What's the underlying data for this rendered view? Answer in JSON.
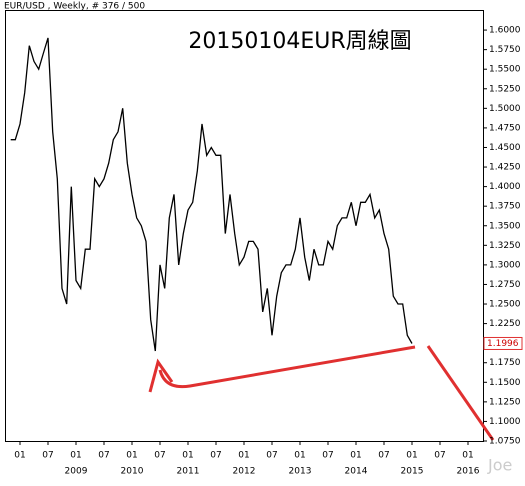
{
  "chart_data": {
    "type": "line",
    "header": "EUR/USD , Weekly, # 376 / 500",
    "title": "20150104EUR周線圖",
    "watermark": "Joe",
    "current_label": "1.1996",
    "x": [
      "2007-11",
      "2007-12",
      "2008-01",
      "2008-02",
      "2008-03",
      "2008-04",
      "2008-05",
      "2008-06",
      "2008-07",
      "2008-08",
      "2008-09",
      "2008-10",
      "2008-11",
      "2008-12",
      "2009-01",
      "2009-02",
      "2009-03",
      "2009-04",
      "2009-05",
      "2009-06",
      "2009-07",
      "2009-08",
      "2009-09",
      "2009-10",
      "2009-11",
      "2009-12",
      "2010-01",
      "2010-02",
      "2010-03",
      "2010-04",
      "2010-05",
      "2010-06",
      "2010-07",
      "2010-08",
      "2010-09",
      "2010-10",
      "2010-11",
      "2010-12",
      "2011-01",
      "2011-02",
      "2011-03",
      "2011-04",
      "2011-05",
      "2011-06",
      "2011-07",
      "2011-08",
      "2011-09",
      "2011-10",
      "2011-11",
      "2011-12",
      "2012-01",
      "2012-02",
      "2012-03",
      "2012-04",
      "2012-05",
      "2012-06",
      "2012-07",
      "2012-08",
      "2012-09",
      "2012-10",
      "2012-11",
      "2012-12",
      "2013-01",
      "2013-02",
      "2013-03",
      "2013-04",
      "2013-05",
      "2013-06",
      "2013-07",
      "2013-08",
      "2013-09",
      "2013-10",
      "2013-11",
      "2013-12",
      "2014-01",
      "2014-02",
      "2014-03",
      "2014-04",
      "2014-05",
      "2014-06",
      "2014-07",
      "2014-08",
      "2014-09",
      "2014-10",
      "2014-11",
      "2014-12",
      "2015-01"
    ],
    "series": [
      {
        "name": "EUR/USD",
        "color": "#000000",
        "values": [
          1.46,
          1.46,
          1.48,
          1.52,
          1.58,
          1.56,
          1.55,
          1.57,
          1.59,
          1.47,
          1.41,
          1.27,
          1.25,
          1.4,
          1.28,
          1.27,
          1.32,
          1.32,
          1.41,
          1.4,
          1.41,
          1.43,
          1.46,
          1.47,
          1.5,
          1.43,
          1.39,
          1.36,
          1.35,
          1.33,
          1.23,
          1.19,
          1.3,
          1.27,
          1.36,
          1.39,
          1.3,
          1.34,
          1.37,
          1.38,
          1.42,
          1.48,
          1.44,
          1.45,
          1.44,
          1.44,
          1.34,
          1.39,
          1.34,
          1.3,
          1.31,
          1.33,
          1.33,
          1.32,
          1.24,
          1.27,
          1.21,
          1.26,
          1.29,
          1.3,
          1.3,
          1.32,
          1.36,
          1.31,
          1.28,
          1.32,
          1.3,
          1.3,
          1.33,
          1.32,
          1.35,
          1.36,
          1.36,
          1.38,
          1.35,
          1.38,
          1.38,
          1.39,
          1.36,
          1.37,
          1.34,
          1.32,
          1.26,
          1.25,
          1.25,
          1.21,
          1.1996
        ]
      }
    ],
    "xlim": [
      "2007-10",
      "2016-04"
    ],
    "xticks": [
      {
        "value": "2008-01",
        "label": "01"
      },
      {
        "value": "2008-07",
        "label": "07"
      },
      {
        "value": "2009-01",
        "label": "01"
      },
      {
        "value": "2009-07",
        "label": "07"
      },
      {
        "value": "2010-01",
        "label": "01"
      },
      {
        "value": "2010-07",
        "label": "07"
      },
      {
        "value": "2011-01",
        "label": "01"
      },
      {
        "value": "2011-07",
        "label": "07"
      },
      {
        "value": "2012-01",
        "label": "01"
      },
      {
        "value": "2012-07",
        "label": "07"
      },
      {
        "value": "2013-01",
        "label": "01"
      },
      {
        "value": "2013-07",
        "label": "07"
      },
      {
        "value": "2014-01",
        "label": "01"
      },
      {
        "value": "2014-07",
        "label": "07"
      },
      {
        "value": "2015-01",
        "label": "01"
      },
      {
        "value": "2015-07",
        "label": "07"
      },
      {
        "value": "2016-01",
        "label": "01"
      }
    ],
    "year_labels": [
      {
        "value": "2009-01",
        "label": "2009"
      },
      {
        "value": "2010-01",
        "label": "2010"
      },
      {
        "value": "2011-01",
        "label": "2011"
      },
      {
        "value": "2012-01",
        "label": "2012"
      },
      {
        "value": "2013-01",
        "label": "2013"
      },
      {
        "value": "2014-01",
        "label": "2014"
      },
      {
        "value": "2015-01",
        "label": "2015"
      },
      {
        "value": "2016-01",
        "label": "2016"
      }
    ],
    "ylim": [
      1.075,
      1.625
    ],
    "yticks": [
      {
        "value": 1.075,
        "label": "1.0750"
      },
      {
        "value": 1.1,
        "label": "1.1000"
      },
      {
        "value": 1.125,
        "label": "1.1250"
      },
      {
        "value": 1.15,
        "label": "1.1500"
      },
      {
        "value": 1.175,
        "label": "1.1750"
      },
      {
        "value": 1.2,
        "label": "1.2000"
      },
      {
        "value": 1.225,
        "label": "1.2250"
      },
      {
        "value": 1.25,
        "label": "1.2500"
      },
      {
        "value": 1.275,
        "label": "1.2750"
      },
      {
        "value": 1.3,
        "label": "1.3000"
      },
      {
        "value": 1.325,
        "label": "1.3250"
      },
      {
        "value": 1.35,
        "label": "1.3500"
      },
      {
        "value": 1.375,
        "label": "1.3750"
      },
      {
        "value": 1.4,
        "label": "1.4000"
      },
      {
        "value": 1.425,
        "label": "1.4250"
      },
      {
        "value": 1.45,
        "label": "1.4500"
      },
      {
        "value": 1.475,
        "label": "1.4750"
      },
      {
        "value": 1.5,
        "label": "1.5000"
      },
      {
        "value": 1.525,
        "label": "1.5250"
      },
      {
        "value": 1.55,
        "label": "1.5500"
      },
      {
        "value": 1.575,
        "label": "1.5750"
      },
      {
        "value": 1.6,
        "label": "1.6000"
      }
    ],
    "grid": false
  }
}
